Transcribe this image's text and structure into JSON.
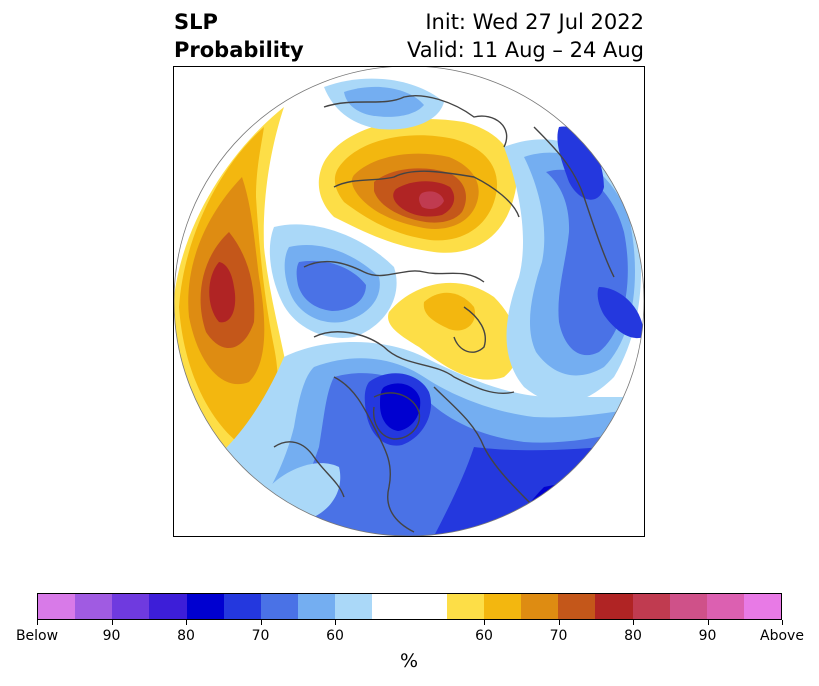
{
  "title": {
    "variable": "SLP",
    "product": "Probability",
    "init": "Init: Wed 27 Jul 2022",
    "valid": "Valid: 11 Aug – 24 Aug"
  },
  "colorbar": {
    "colors": [
      "#d87ae8",
      "#a05be2",
      "#6f3adf",
      "#3d1ed8",
      "#0000d0",
      "#2438de",
      "#4a72e6",
      "#74aef1",
      "#aad8f8",
      "#ffffff",
      "#ffffff",
      "#fdde47",
      "#f3b70f",
      "#de8c12",
      "#c4571a",
      "#b02424",
      "#c03b50",
      "#cf5189",
      "#dc60b1",
      "#e87ae6"
    ],
    "tick_labels": [
      "Below",
      "90",
      "80",
      "70",
      "60",
      "60",
      "70",
      "80",
      "90",
      "Above"
    ],
    "unit": "%"
  }
}
